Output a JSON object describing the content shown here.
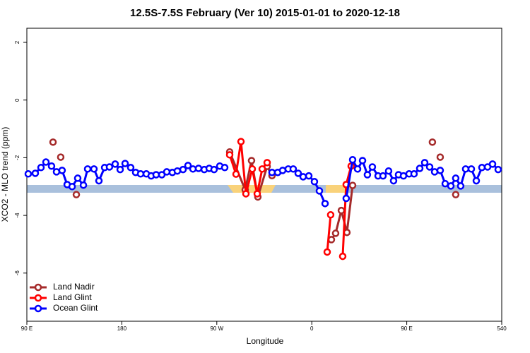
{
  "chart_data": {
    "type": "line",
    "title": "12.5S-7.5S February (Ver 10)   2015-01-01 to 2020-12-18",
    "xlabel": "Longitude",
    "ylabel": "XCO2 - MLO trend (ppm)",
    "xlim": [
      90,
      540
    ],
    "xticks": [
      {
        "value": 90,
        "label": "90 E"
      },
      180,
      {
        "value": 270,
        "label": "90 W"
      },
      {
        "value": 360,
        "label": "0"
      },
      {
        "value": 450,
        "label": "90 E"
      },
      540
    ],
    "ylim": [
      -7.67,
      2.49
    ],
    "yticks": [
      -6,
      -4,
      -2,
      0,
      2
    ],
    "legend": "bottom-left",
    "series": [
      {
        "name": "Land Nadir",
        "color": "#a52a2a",
        "x": [
          114.8,
          null,
          122.1,
          null,
          136.9,
          null,
          282.2,
          296.9,
          302.9,
          308.9,
          317.7,
          322.3,
          null,
          378.6,
          382.6,
          388.0,
          393.3,
          398.7,
          null,
          474.3,
          null,
          481.7,
          null,
          496.4
        ],
        "values": [
          -1.46,
          null,
          -1.98,
          null,
          -3.28,
          null,
          -1.8,
          -3.11,
          -2.1,
          -3.36,
          -2.3,
          -2.62,
          null,
          -4.84,
          -4.62,
          -3.83,
          -4.59,
          -2.96,
          null,
          -1.46,
          null,
          -1.98,
          null,
          -3.28
        ]
      },
      {
        "name": "Land Glint",
        "color": "#ff0000",
        "x": [
          282.2,
          288.2,
          292.9,
          297.6,
          303.6,
          308.3,
          313.0,
          317.7,
          null,
          374.6,
          377.9,
          null,
          389.3,
          392.6,
          397.3
        ],
        "values": [
          -1.9,
          -2.57,
          -1.44,
          -3.25,
          -2.39,
          -3.25,
          -2.39,
          -2.17,
          null,
          -5.27,
          -3.98,
          null,
          -5.42,
          -2.93,
          -2.29
        ]
      },
      {
        "name": "Ocean Glint",
        "color": "#0000ff",
        "x": [
          91.3,
          98.0,
          103.4,
          108.1,
          113.4,
          118.1,
          123.4,
          128.2,
          132.9,
          138.2,
          143.6,
          147.6,
          153.6,
          158.3,
          163.7,
          168.3,
          173.7,
          178.4,
          183.1,
          188.4,
          193.1,
          197.8,
          203.2,
          207.8,
          212.5,
          217.9,
          222.6,
          227.9,
          232.6,
          238.0,
          242.7,
          247.4,
          252.7,
          258.1,
          262.8,
          267.4,
          272.8,
          277.5,
          null,
          322.3,
          327.7,
          332.4,
          337.7,
          342.4,
          347.1,
          351.8,
          357.2,
          362.5,
          367.2,
          372.6,
          null,
          392.6,
          398.7,
          403.4,
          408.1,
          412.7,
          417.4,
          422.8,
          427.5,
          432.8,
          437.5,
          442.2,
          446.9,
          452.2,
          456.9,
          462.3,
          467.0,
          471.7,
          476.4,
          481.7,
          486.4,
          491.8,
          496.4,
          501.1,
          505.8,
          511.2,
          515.9,
          521.2,
          526.6,
          531.3,
          536.6
        ],
        "values": [
          -2.56,
          -2.54,
          -2.34,
          -2.15,
          -2.29,
          -2.49,
          -2.44,
          -2.93,
          -3.0,
          -2.71,
          -2.95,
          -2.39,
          -2.39,
          -2.8,
          -2.34,
          -2.32,
          -2.22,
          -2.41,
          -2.2,
          -2.34,
          -2.51,
          -2.56,
          -2.56,
          -2.63,
          -2.59,
          -2.59,
          -2.49,
          -2.51,
          -2.46,
          -2.41,
          -2.27,
          -2.39,
          -2.37,
          -2.41,
          -2.37,
          -2.41,
          -2.29,
          -2.34,
          null,
          -2.51,
          -2.51,
          -2.44,
          -2.39,
          -2.39,
          -2.54,
          -2.66,
          -2.63,
          -2.83,
          -3.15,
          -3.59,
          null,
          -3.41,
          -2.07,
          -2.39,
          -2.1,
          -2.59,
          -2.32,
          -2.63,
          -2.63,
          -2.46,
          -2.8,
          -2.59,
          -2.63,
          -2.56,
          -2.56,
          -2.37,
          -2.17,
          -2.32,
          -2.49,
          -2.44,
          -2.9,
          -2.98,
          -2.71,
          -2.98,
          -2.39,
          -2.39,
          -2.8,
          -2.34,
          -2.32,
          -2.22,
          -2.41
        ]
      }
    ]
  }
}
